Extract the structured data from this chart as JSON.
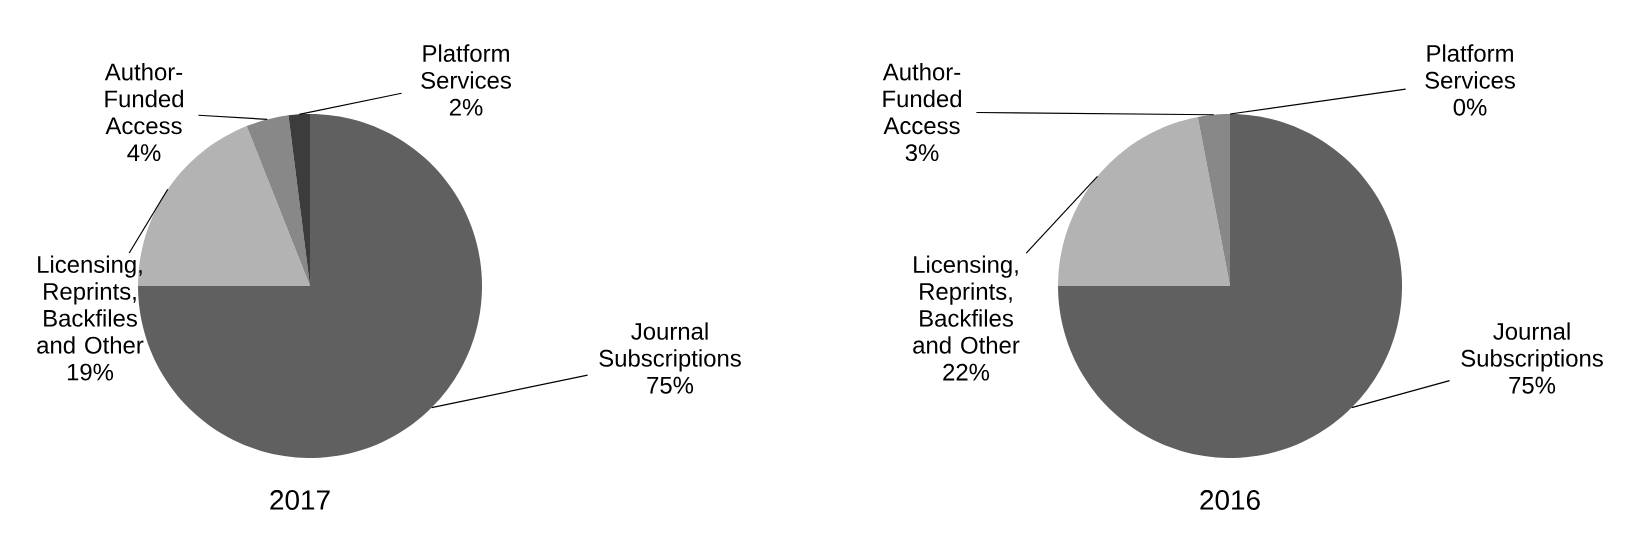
{
  "chart_data": [
    {
      "type": "pie",
      "title": "2017",
      "categories": [
        "Journal Subscriptions",
        "Licensing, Reprints, Backfiles and Other",
        "Author-Funded Access",
        "Platform Services"
      ],
      "values": [
        75,
        19,
        4,
        2
      ],
      "value_labels": [
        "75%",
        "19%",
        "4%",
        "2%"
      ],
      "colors": [
        "#606060",
        "#b3b3b3",
        "#888888",
        "#3c3c3c"
      ]
    },
    {
      "type": "pie",
      "title": "2016",
      "categories": [
        "Journal Subscriptions",
        "Licensing, Reprints, Backfiles and Other",
        "Author-Funded Access",
        "Platform Services"
      ],
      "values": [
        75,
        22,
        3,
        0
      ],
      "value_labels": [
        "75%",
        "22%",
        "3%",
        "0%"
      ],
      "colors": [
        "#606060",
        "#b3b3b3",
        "#888888",
        "#3c3c3c"
      ]
    }
  ]
}
